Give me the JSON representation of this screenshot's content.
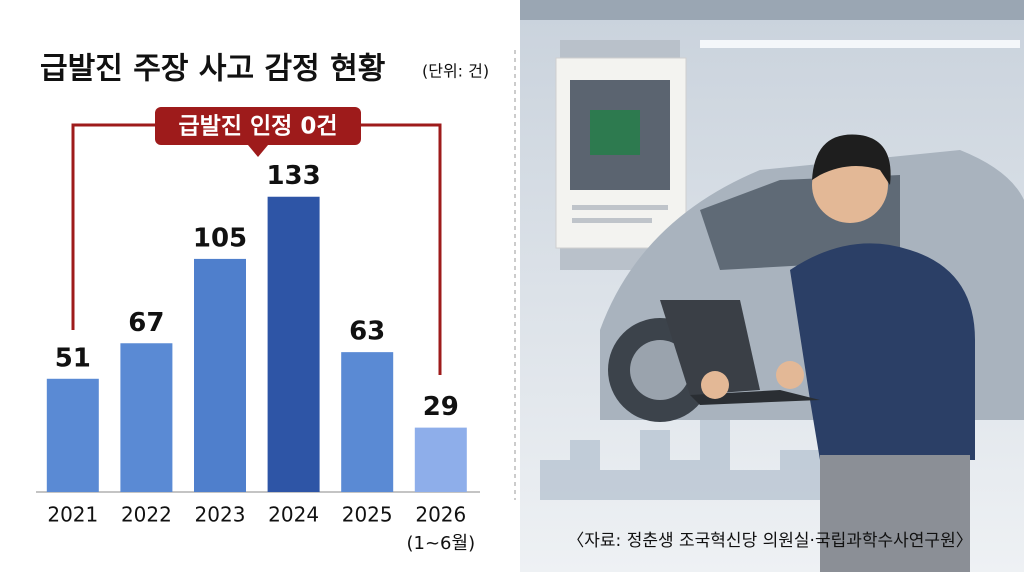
{
  "chart_data": {
    "type": "bar",
    "title": "급발진 주장 사고 감정 현황",
    "unit": "(단위: 건)",
    "annotation": "급발진 인정 0건",
    "source": "〈자료: 정춘생 조국혁신당 의원실·국립과학수사연구원〉",
    "categories": [
      "2021",
      "2022",
      "2023",
      "2024",
      "2025",
      "2026"
    ],
    "category_notes": [
      null,
      null,
      null,
      null,
      null,
      "(1~6월)"
    ],
    "values": [
      51,
      67,
      105,
      133,
      63,
      29
    ],
    "colors": [
      "#5a8ad4",
      "#5a8ad4",
      "#4f7fcc",
      "#2e55a6",
      "#5a8ad4",
      "#8eaeea"
    ],
    "ylim": [
      0,
      150
    ]
  }
}
